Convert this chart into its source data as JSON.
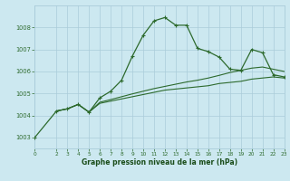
{
  "bg_color": "#cce8f0",
  "grid_color": "#aaccda",
  "line_color": "#2d6a2d",
  "marker_color": "#2d6a2d",
  "xlabel": "Graphe pression niveau de la mer (hPa)",
  "xlabel_color": "#1a4d1a",
  "ylim": [
    1002.5,
    1009.0
  ],
  "xlim": [
    0,
    23
  ],
  "yticks": [
    1003,
    1004,
    1005,
    1006,
    1007,
    1008
  ],
  "xticks": [
    0,
    2,
    3,
    4,
    5,
    6,
    7,
    8,
    9,
    10,
    11,
    12,
    13,
    14,
    15,
    16,
    17,
    18,
    19,
    20,
    21,
    22,
    23
  ],
  "series_main": {
    "x": [
      0,
      2,
      3,
      4,
      5,
      6,
      7,
      8,
      9,
      10,
      11,
      12,
      13,
      14,
      15,
      16,
      17,
      18,
      19,
      20,
      21,
      22,
      23
    ],
    "y": [
      1003.0,
      1004.2,
      1004.3,
      1004.5,
      1004.15,
      1004.8,
      1005.1,
      1005.6,
      1006.7,
      1007.65,
      1008.3,
      1008.45,
      1008.1,
      1008.1,
      1007.05,
      1006.9,
      1006.65,
      1006.1,
      1006.05,
      1007.0,
      1006.85,
      1005.85,
      1005.75
    ]
  },
  "series_smooth1": {
    "x": [
      2,
      3,
      4,
      5,
      6,
      7,
      8,
      9,
      10,
      11,
      12,
      13,
      14,
      15,
      16,
      17,
      18,
      19,
      20,
      21,
      22,
      23
    ],
    "y": [
      1004.2,
      1004.3,
      1004.5,
      1004.15,
      1004.55,
      1004.65,
      1004.75,
      1004.85,
      1004.95,
      1005.05,
      1005.15,
      1005.2,
      1005.25,
      1005.3,
      1005.35,
      1005.45,
      1005.5,
      1005.55,
      1005.65,
      1005.7,
      1005.75,
      1005.7
    ]
  },
  "series_smooth2": {
    "x": [
      2,
      3,
      4,
      5,
      6,
      7,
      8,
      9,
      10,
      11,
      12,
      13,
      14,
      15,
      16,
      17,
      18,
      19,
      20,
      21,
      22,
      23
    ],
    "y": [
      1004.2,
      1004.3,
      1004.5,
      1004.15,
      1004.6,
      1004.72,
      1004.85,
      1004.98,
      1005.1,
      1005.22,
      1005.32,
      1005.42,
      1005.52,
      1005.6,
      1005.7,
      1005.82,
      1005.95,
      1006.05,
      1006.15,
      1006.2,
      1006.1,
      1006.0
    ]
  },
  "figsize": [
    3.2,
    2.0
  ],
  "dpi": 100
}
